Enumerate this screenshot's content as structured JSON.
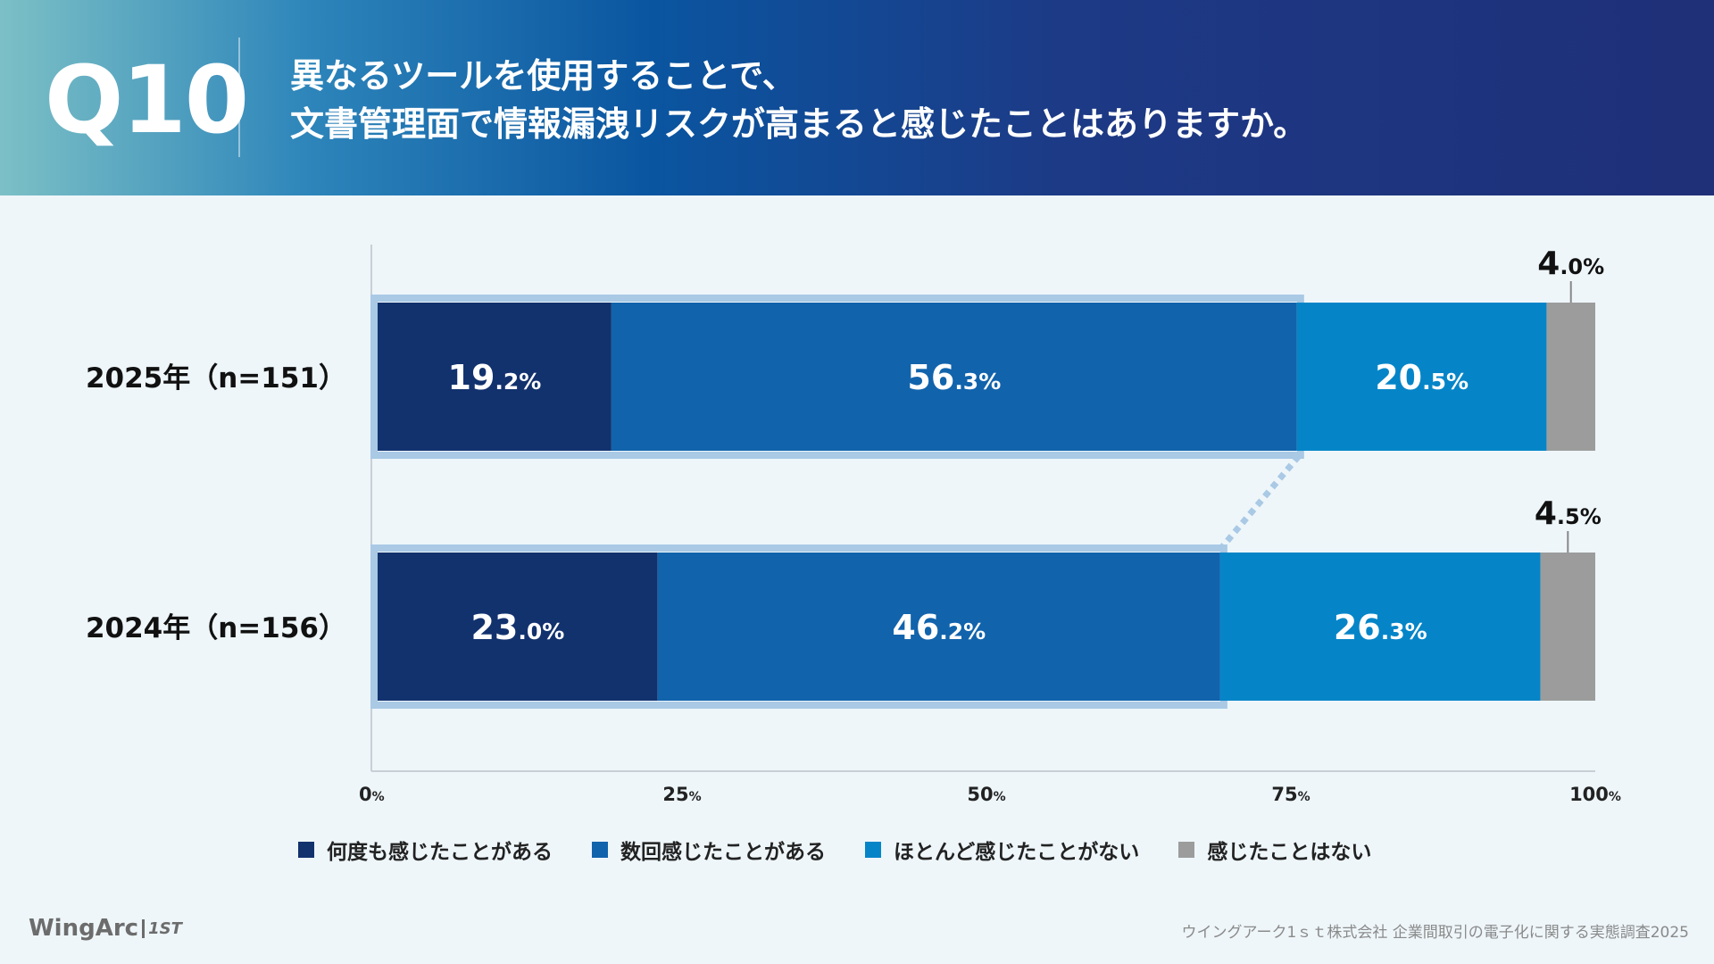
{
  "header": {
    "question_number": "Q10",
    "title_line1": "異なるツールを使用することで、",
    "title_line2": "文書管理面で情報漏洩リスクが高まると感じたことはありますか。"
  },
  "colors": {
    "series1": "#12326e",
    "series2": "#1163ac",
    "series3": "#0585c8",
    "series4": "#9c9c9c",
    "highlight_frame": "#a9c9e5"
  },
  "chart_data": {
    "type": "bar",
    "orientation": "horizontal-stacked",
    "categories": [
      "2025年（n=151）",
      "2024年（n=156）"
    ],
    "series": [
      {
        "name": "何度も感じたことがある",
        "values": [
          19.2,
          23.0
        ]
      },
      {
        "name": "数回感じたことがある",
        "values": [
          56.3,
          46.2
        ]
      },
      {
        "name": "ほとんど感じたことがない",
        "values": [
          20.5,
          26.3
        ]
      },
      {
        "name": "感じたことはない",
        "values": [
          4.0,
          4.5
        ]
      }
    ],
    "data_labels": [
      [
        {
          "main": "19",
          "dec": ".2%"
        },
        {
          "main": "56",
          "dec": ".3%"
        },
        {
          "main": "20",
          "dec": ".5%"
        },
        {
          "main": "4",
          "dec": ".0%"
        }
      ],
      [
        {
          "main": "23",
          "dec": ".0%"
        },
        {
          "main": "46",
          "dec": ".2%"
        },
        {
          "main": "26",
          "dec": ".3%"
        },
        {
          "main": "4",
          "dec": ".5%"
        }
      ]
    ],
    "x_ticks": [
      {
        "main": "0",
        "unit": "%",
        "value": 0
      },
      {
        "main": "25",
        "unit": "%",
        "value": 25
      },
      {
        "main": "50",
        "unit": "%",
        "value": 50
      },
      {
        "main": "75",
        "unit": "%",
        "value": 75
      },
      {
        "main": "100",
        "unit": "%",
        "value": 100
      }
    ],
    "xlim": [
      0,
      100
    ],
    "highlight": "first two series grouped per bar, connected by dotted line",
    "legend_position": "bottom",
    "grid": false
  },
  "legend": [
    {
      "label": "何度も感じたことがある"
    },
    {
      "label": "数回感じたことがある"
    },
    {
      "label": "ほとんど感じたことがない"
    },
    {
      "label": "感じたことはない"
    }
  ],
  "footer": {
    "logo_text": "WingArc",
    "logo_mark": "1ST",
    "source": "ウイングアーク1ｓｔ株式会社 企業間取引の電子化に関する実態調査2025"
  }
}
